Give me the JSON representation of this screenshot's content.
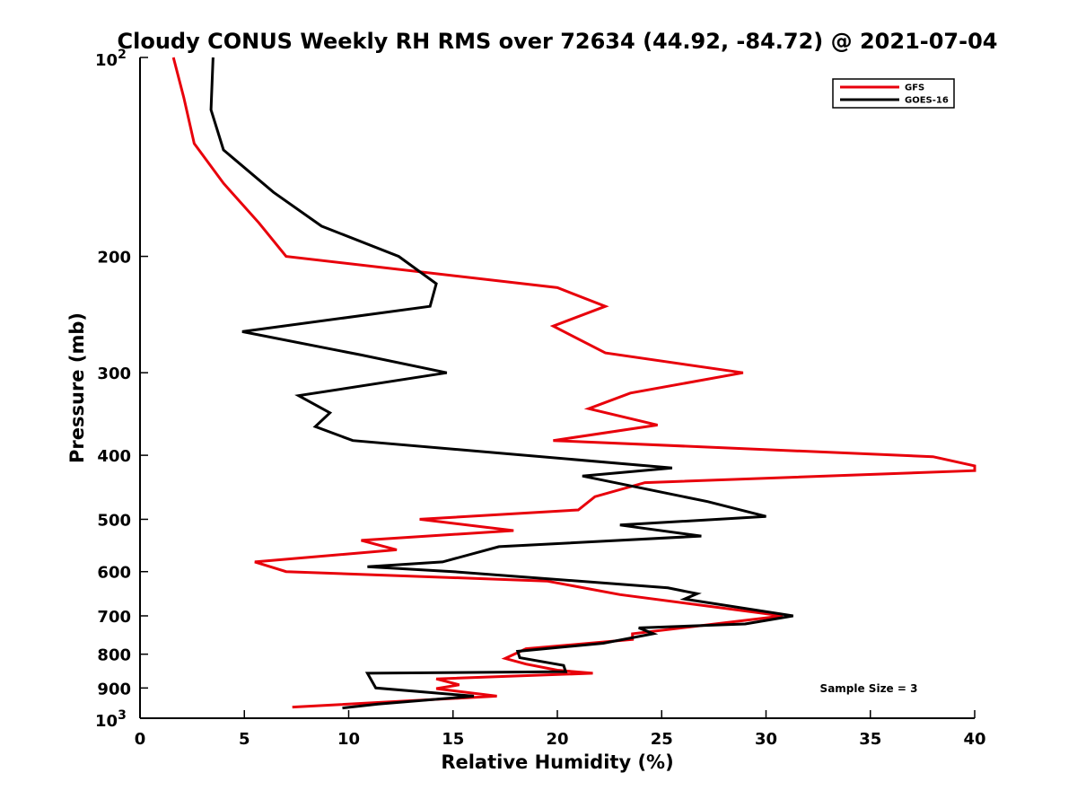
{
  "chart_data": {
    "type": "line",
    "title": "Cloudy CONUS Weekly RH RMS over 72634 (44.92, -84.72) @ 2021-07-04",
    "xlabel": "Relative Humidity (%)",
    "ylabel": "Pressure (mb)",
    "xlim": [
      0,
      40
    ],
    "ylim": [
      100,
      1000
    ],
    "y_scale": "log",
    "y_reversed": true,
    "x_ticks": [
      0,
      5,
      10,
      15,
      20,
      25,
      30,
      35,
      40
    ],
    "y_ticks": [
      100,
      200,
      300,
      400,
      500,
      600,
      700,
      800,
      900,
      1000
    ],
    "y_tick_labels": {
      "base": "10",
      "exp_top": "2",
      "exp_bottom": "3"
    },
    "legend_position": "top-right",
    "grid": false,
    "annotation": "Sample Size = 3",
    "series": [
      {
        "name": "GFS",
        "color": "#e8000b",
        "points": [
          [
            1.6,
            100
          ],
          [
            2.1,
            115
          ],
          [
            2.6,
            135
          ],
          [
            4.0,
            155
          ],
          [
            5.7,
            178
          ],
          [
            7.0,
            200
          ],
          [
            20.0,
            223
          ],
          [
            22.3,
            238
          ],
          [
            19.8,
            255
          ],
          [
            22.3,
            280
          ],
          [
            28.9,
            300
          ],
          [
            23.5,
            322
          ],
          [
            21.5,
            340
          ],
          [
            24.8,
            360
          ],
          [
            19.8,
            380
          ],
          [
            38.0,
            402
          ],
          [
            40.0,
            415
          ],
          [
            40.0,
            422
          ],
          [
            24.2,
            440
          ],
          [
            21.8,
            462
          ],
          [
            21.0,
            484
          ],
          [
            13.4,
            500
          ],
          [
            17.9,
            520
          ],
          [
            10.6,
            538
          ],
          [
            12.3,
            556
          ],
          [
            5.5,
            580
          ],
          [
            7.0,
            600
          ],
          [
            19.5,
            620
          ],
          [
            23.0,
            650
          ],
          [
            30.8,
            700
          ],
          [
            23.6,
            745
          ],
          [
            23.6,
            760
          ],
          [
            18.5,
            785
          ],
          [
            17.5,
            812
          ],
          [
            18.5,
            828
          ],
          [
            20.0,
            846
          ],
          [
            21.7,
            855
          ],
          [
            14.2,
            872
          ],
          [
            15.3,
            890
          ],
          [
            14.2,
            902
          ],
          [
            17.1,
            926
          ],
          [
            7.3,
            962
          ]
        ]
      },
      {
        "name": "GOES-16",
        "color": "#000000",
        "points": [
          [
            3.5,
            100
          ],
          [
            3.4,
            120
          ],
          [
            4.0,
            138
          ],
          [
            6.4,
            160
          ],
          [
            8.7,
            180
          ],
          [
            12.4,
            200
          ],
          [
            14.2,
            220
          ],
          [
            13.9,
            238
          ],
          [
            4.9,
            260
          ],
          [
            10.6,
            282
          ],
          [
            14.7,
            300
          ],
          [
            7.6,
            325
          ],
          [
            9.1,
            345
          ],
          [
            8.4,
            362
          ],
          [
            10.2,
            380
          ],
          [
            25.5,
            418
          ],
          [
            21.2,
            430
          ],
          [
            27.2,
            470
          ],
          [
            30.0,
            495
          ],
          [
            23.0,
            510
          ],
          [
            26.9,
            530
          ],
          [
            17.2,
            550
          ],
          [
            14.5,
            580
          ],
          [
            10.9,
            590
          ],
          [
            15.0,
            600
          ],
          [
            25.3,
            635
          ],
          [
            26.7,
            648
          ],
          [
            26.1,
            660
          ],
          [
            31.3,
            700
          ],
          [
            29.0,
            720
          ],
          [
            23.9,
            730
          ],
          [
            24.6,
            745
          ],
          [
            22.2,
            770
          ],
          [
            18.1,
            792
          ],
          [
            18.2,
            810
          ],
          [
            20.3,
            832
          ],
          [
            20.4,
            850
          ],
          [
            10.9,
            855
          ],
          [
            11.3,
            900
          ],
          [
            16.0,
            926
          ],
          [
            11.4,
            952
          ],
          [
            9.7,
            965
          ]
        ]
      }
    ]
  }
}
